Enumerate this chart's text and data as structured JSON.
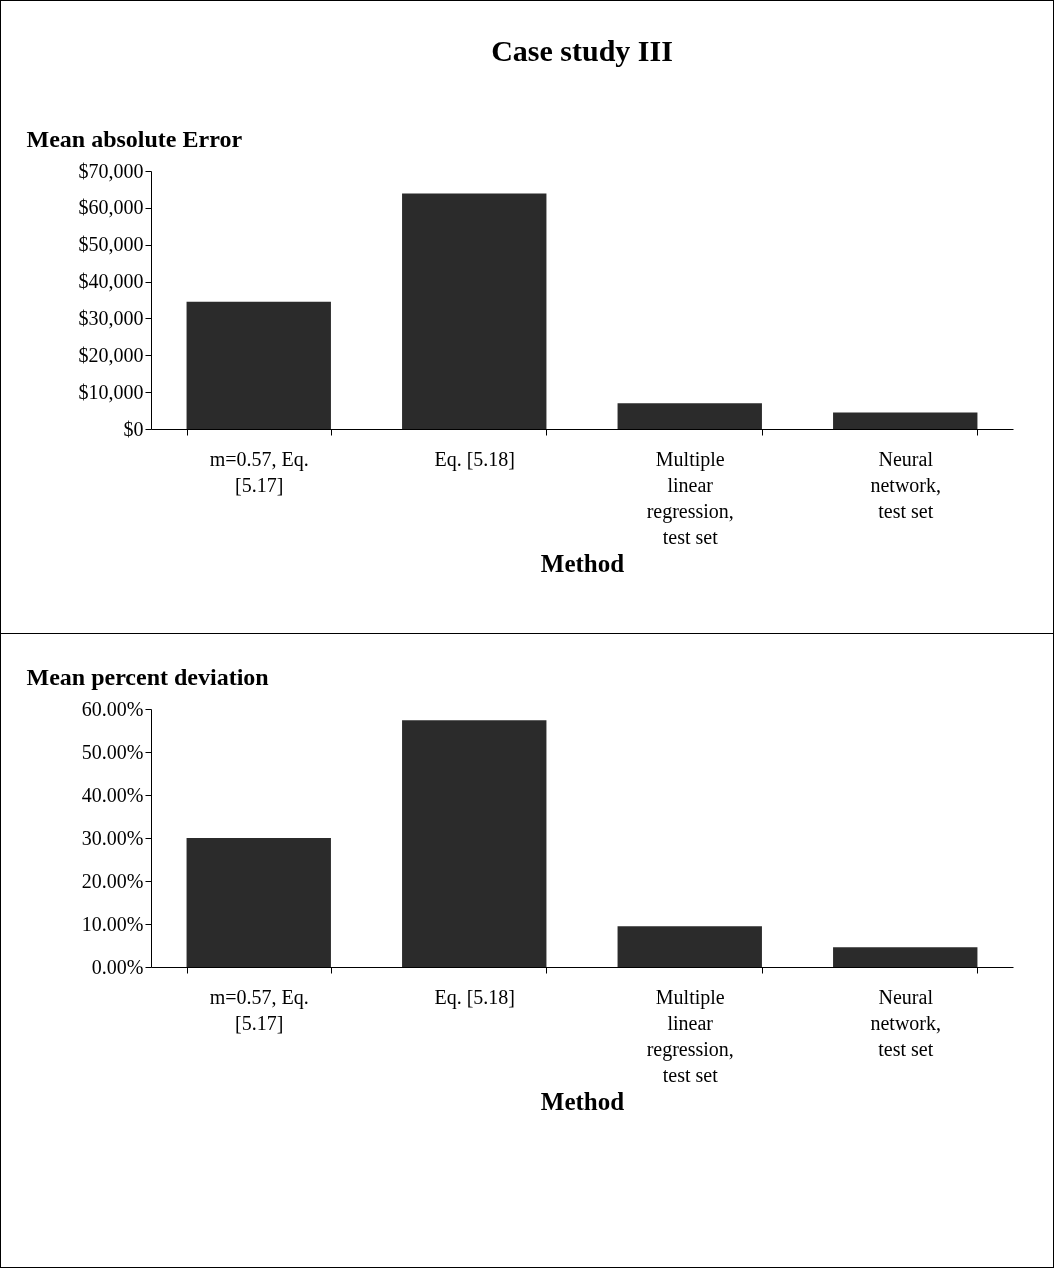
{
  "chart_data": [
    {
      "type": "bar",
      "title": "Case study III",
      "xlabel": "Method",
      "ylabel": "Mean absolute Error",
      "categories": [
        "m=0.57, Eq. [5.17]",
        "Eq. [5.18]",
        "Multiple linear regression, test set",
        "Neural network, test set"
      ],
      "values": [
        34500,
        63900,
        7000,
        4500
      ],
      "color": "#2b2b2b",
      "ylim": [
        0,
        70000
      ],
      "yticks": [
        {
          "value": 0,
          "label": "$0"
        },
        {
          "value": 10000,
          "label": "$10,000"
        },
        {
          "value": 20000,
          "label": "$20,000"
        },
        {
          "value": 30000,
          "label": "$30,000"
        },
        {
          "value": 40000,
          "label": "$40,000"
        },
        {
          "value": 50000,
          "label": "$50,000"
        },
        {
          "value": 60000,
          "label": "$60,000"
        },
        {
          "value": 70000,
          "label": "$70,000"
        }
      ]
    },
    {
      "type": "bar",
      "xlabel": "Method",
      "ylabel": "Mean percent deviation",
      "categories": [
        "m=0.57, Eq. [5.17]",
        "Eq. [5.18]",
        "Multiple linear regression, test set",
        "Neural network, test set"
      ],
      "values": [
        30,
        57.4,
        9.5,
        4.6
      ],
      "color": "#2b2b2b",
      "ylim": [
        0,
        60
      ],
      "yticks": [
        {
          "value": 0,
          "label": "0.00%"
        },
        {
          "value": 10,
          "label": "10.00%"
        },
        {
          "value": 20,
          "label": "20.00%"
        },
        {
          "value": 30,
          "label": "30.00%"
        },
        {
          "value": 40,
          "label": "40.00%"
        },
        {
          "value": 50,
          "label": "50.00%"
        },
        {
          "value": 60,
          "label": "60.00%"
        }
      ]
    }
  ]
}
